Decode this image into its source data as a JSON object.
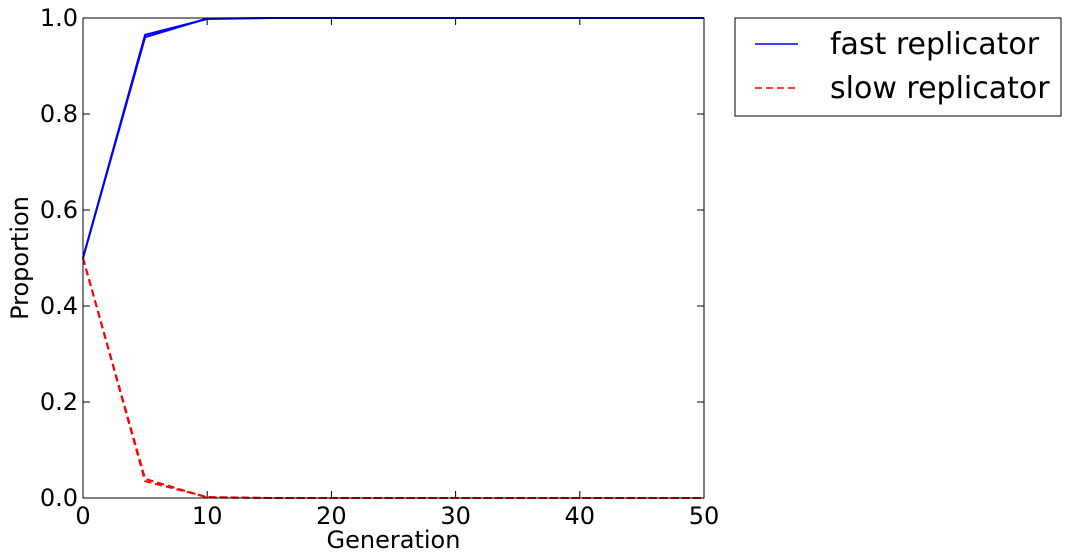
{
  "chart_data": {
    "type": "line",
    "title": "",
    "xlabel": "Generation",
    "ylabel": "Proportion",
    "xlim": [
      0,
      50
    ],
    "ylim": [
      0,
      1.0
    ],
    "xticks": [
      0,
      10,
      20,
      30,
      40,
      50
    ],
    "yticks": [
      0.0,
      0.2,
      0.4,
      0.6,
      0.8,
      1.0
    ],
    "xtick_labels": [
      "0",
      "10",
      "20",
      "30",
      "40",
      "50"
    ],
    "ytick_labels": [
      "0.0",
      "0.2",
      "0.4",
      "0.6",
      "0.8",
      "1.0"
    ],
    "grid": false,
    "legend_position": "outside top-right",
    "series": [
      {
        "name": "fast replicator",
        "color": "#0000ff",
        "style": "solid",
        "runs": [
          {
            "x": [
              0,
              5,
              10,
              15,
              20,
              25,
              30,
              35,
              40,
              45,
              50
            ],
            "y": [
              0.5,
              0.96,
              0.999,
              1.0,
              1.0,
              1.0,
              1.0,
              1.0,
              1.0,
              1.0,
              1.0
            ]
          },
          {
            "x": [
              0,
              5,
              10,
              15,
              20,
              25,
              30,
              35,
              40,
              45,
              50
            ],
            "y": [
              0.5,
              0.965,
              0.998,
              1.0,
              1.0,
              1.0,
              1.0,
              1.0,
              1.0,
              1.0,
              1.0
            ]
          }
        ]
      },
      {
        "name": "slow replicator",
        "color": "#ff0000",
        "style": "dashed",
        "runs": [
          {
            "x": [
              0,
              5,
              10,
              15,
              20,
              25,
              30,
              35,
              40,
              45,
              50
            ],
            "y": [
              0.5,
              0.04,
              0.001,
              0.0,
              0.0,
              0.0,
              0.0,
              0.0,
              0.0,
              0.0,
              0.0
            ]
          },
          {
            "x": [
              0,
              5,
              10,
              15,
              20,
              25,
              30,
              35,
              40,
              45,
              50
            ],
            "y": [
              0.5,
              0.035,
              0.002,
              0.0,
              0.0,
              0.0,
              0.0,
              0.0,
              0.0,
              0.0,
              0.0
            ]
          }
        ]
      }
    ]
  }
}
